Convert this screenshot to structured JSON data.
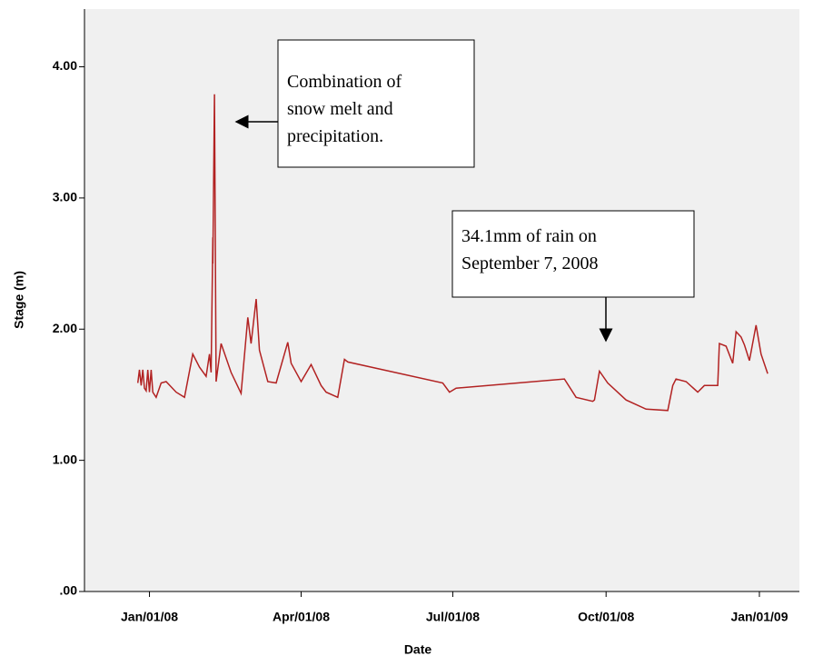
{
  "chart_data": {
    "type": "line",
    "x_label": "Date",
    "y_label": "Stage (m)",
    "color": "#b22222",
    "x": [
      "2007-12-25",
      "2007-12-26",
      "2007-12-27",
      "2007-12-28",
      "2007-12-29",
      "2007-12-30",
      "2007-12-31",
      "2008-01-01",
      "2008-01-02",
      "2008-01-03",
      "2008-01-05",
      "2008-01-08",
      "2008-01-11",
      "2008-01-17",
      "2008-01-22",
      "2008-01-27",
      "2008-01-31",
      "2008-02-04",
      "2008-02-06",
      "2008-02-07",
      "2008-02-08",
      "2008-02-08",
      "2008-02-09",
      "2008-02-10",
      "2008-02-13",
      "2008-02-19",
      "2008-02-25",
      "2008-02-29",
      "2008-03-02",
      "2008-03-05",
      "2008-03-07",
      "2008-03-12",
      "2008-03-17",
      "2008-03-24",
      "2008-03-26",
      "2008-04-01",
      "2008-04-07",
      "2008-04-13",
      "2008-04-16",
      "2008-04-23",
      "2008-04-27",
      "2008-04-29",
      "2008-06-25",
      "2008-06-29",
      "2008-07-03",
      "2008-09-06",
      "2008-09-13",
      "2008-09-23",
      "2008-09-24",
      "2008-09-27",
      "2008-10-02",
      "2008-10-13",
      "2008-10-25",
      "2008-11-07",
      "2008-11-10",
      "2008-11-12",
      "2008-11-18",
      "2008-11-25",
      "2008-11-29",
      "2008-12-07",
      "2008-12-08",
      "2008-12-12",
      "2008-12-16",
      "2008-12-18",
      "2008-12-21",
      "2008-12-23",
      "2008-12-26",
      "2008-12-30",
      "2009-01-02",
      "2009-01-06"
    ],
    "values": [
      1.59,
      1.69,
      1.57,
      1.69,
      1.55,
      1.53,
      1.69,
      1.52,
      1.69,
      1.52,
      1.48,
      1.59,
      1.6,
      1.52,
      1.48,
      1.81,
      1.71,
      1.64,
      1.81,
      1.67,
      2.7,
      2.5,
      3.79,
      1.6,
      1.89,
      1.67,
      1.51,
      2.09,
      1.89,
      2.23,
      1.84,
      1.6,
      1.59,
      1.9,
      1.74,
      1.6,
      1.73,
      1.57,
      1.52,
      1.48,
      1.77,
      1.75,
      1.59,
      1.52,
      1.55,
      1.62,
      1.48,
      1.45,
      1.46,
      1.68,
      1.59,
      1.46,
      1.39,
      1.38,
      1.57,
      1.62,
      1.6,
      1.52,
      1.57,
      1.57,
      1.89,
      1.87,
      1.74,
      1.98,
      1.94,
      1.88,
      1.76,
      2.03,
      1.81,
      1.66
    ],
    "xlim": [
      "2007-11-23",
      "2009-01-25"
    ],
    "xticks": [
      {
        "value": "2008-01-01",
        "label": "Jan/01/08"
      },
      {
        "value": "2008-04-01",
        "label": "Apr/01/08"
      },
      {
        "value": "2008-07-01",
        "label": "Jul/01/08"
      },
      {
        "value": "2008-10-01",
        "label": "Oct/01/08"
      },
      {
        "value": "2009-01-01",
        "label": "Jan/01/09"
      }
    ],
    "ylim": [
      0,
      4.44
    ],
    "yticks": [
      {
        "value": 0,
        "label": ".00"
      },
      {
        "value": 1,
        "label": "1.00"
      },
      {
        "value": 2,
        "label": "2.00"
      },
      {
        "value": 3,
        "label": "3.00"
      },
      {
        "value": 4,
        "label": "4.00"
      }
    ],
    "annotations": [
      {
        "lines": [
          "Combination of",
          "snow melt and",
          "precipitation."
        ]
      },
      {
        "lines": [
          "34.1mm of rain on",
          "September 7, 2008"
        ]
      }
    ]
  }
}
